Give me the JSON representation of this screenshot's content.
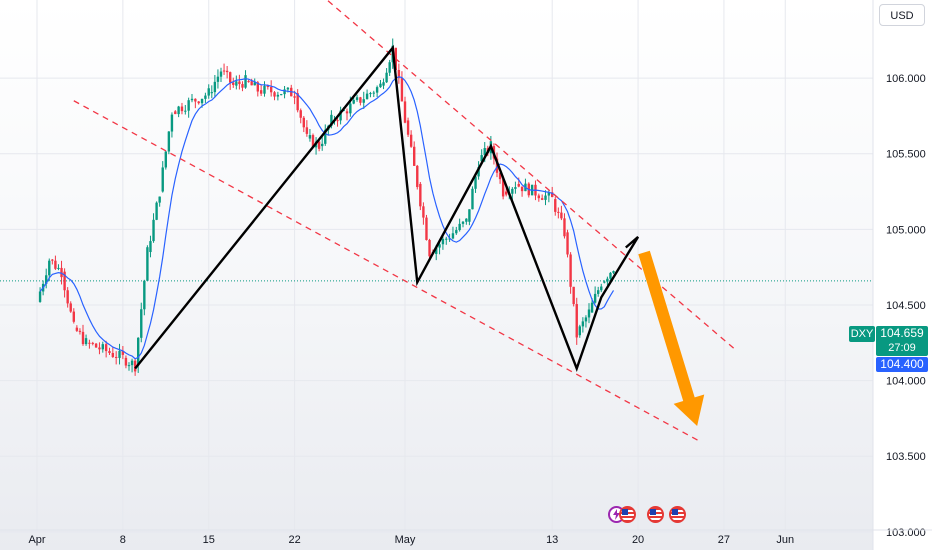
{
  "currency_button": "USD",
  "symbol": "DXY",
  "last_price": "104.659",
  "countdown": "27:09",
  "ma_value": "104.400",
  "colors": {
    "up": "#089981",
    "down": "#f23645",
    "ma": "#2962ff",
    "channel": "#f23645",
    "pattern": "#000000",
    "arrow": "#ff9800"
  },
  "event_icons": [
    "lightning-calendar-icon",
    "us-flag-icon",
    "us-flag-icon",
    "us-flag-icon"
  ],
  "chart_data": {
    "type": "candlestick",
    "title": "",
    "y_axis": {
      "ticks": [
        "106.000",
        "105.500",
        "105.000",
        "104.500",
        "104.000",
        "103.500",
        "103.000"
      ],
      "range": [
        102.88,
        106.45
      ]
    },
    "x_axis": {
      "ticks": [
        "Apr",
        "8",
        "15",
        "22",
        "May",
        "13",
        "20",
        "27",
        "Jun"
      ]
    },
    "series": [
      {
        "name": "price",
        "points": [
          [
            "Apr 1",
            104.52
          ],
          [
            "Apr 2",
            104.8
          ],
          [
            "Apr 3",
            104.72
          ],
          [
            "Apr 4",
            104.35
          ],
          [
            "Apr 5",
            104.25
          ],
          [
            "Apr 8",
            104.15
          ],
          [
            "Apr 9",
            104.1
          ],
          [
            "Apr 10",
            104.85
          ],
          [
            "Apr 11",
            105.25
          ],
          [
            "Apr 12",
            105.78
          ],
          [
            "Apr 15",
            105.9
          ],
          [
            "Apr 16",
            106.05
          ],
          [
            "Apr 17",
            105.95
          ],
          [
            "Apr 18",
            105.98
          ],
          [
            "Apr 19",
            105.92
          ],
          [
            "Apr 22",
            105.9
          ],
          [
            "Apr 23",
            105.6
          ],
          [
            "Apr 24",
            105.55
          ],
          [
            "Apr 25",
            105.72
          ],
          [
            "Apr 26",
            105.78
          ],
          [
            "Apr 29",
            105.95
          ],
          [
            "Apr 30",
            106.2
          ],
          [
            "May 1",
            105.72
          ],
          [
            "May 2",
            105.3
          ],
          [
            "May 3",
            104.85
          ],
          [
            "May 6",
            105.05
          ],
          [
            "May 7",
            105.45
          ],
          [
            "May 8",
            105.55
          ],
          [
            "May 9",
            105.25
          ],
          [
            "May 10",
            105.3
          ],
          [
            "May 13",
            105.2
          ],
          [
            "May 14",
            104.98
          ],
          [
            "May 15",
            104.3
          ],
          [
            "May 16",
            104.45
          ],
          [
            "May 17",
            104.65
          ]
        ]
      }
    ],
    "annotations": {
      "channel_upper": [
        [
          "Apr 22",
          106.7
        ],
        [
          "May 28",
          104.2
        ]
      ],
      "channel_lower": [
        [
          "Apr 4",
          105.85
        ],
        [
          "May 25",
          103.6
        ]
      ],
      "wave_path": [
        [
          "Apr 9",
          104.08
        ],
        [
          "Apr 30",
          106.2
        ],
        [
          "May 2",
          104.65
        ],
        [
          "May 8",
          105.55
        ],
        [
          "May 15",
          104.08
        ],
        [
          "May 17",
          104.55
        ],
        [
          "May 20",
          104.95
        ],
        [
          "May 19",
          104.88
        ]
      ],
      "projection_arrow": [
        [
          "May 20",
          104.9
        ],
        [
          "May 24",
          103.7
        ]
      ]
    }
  }
}
